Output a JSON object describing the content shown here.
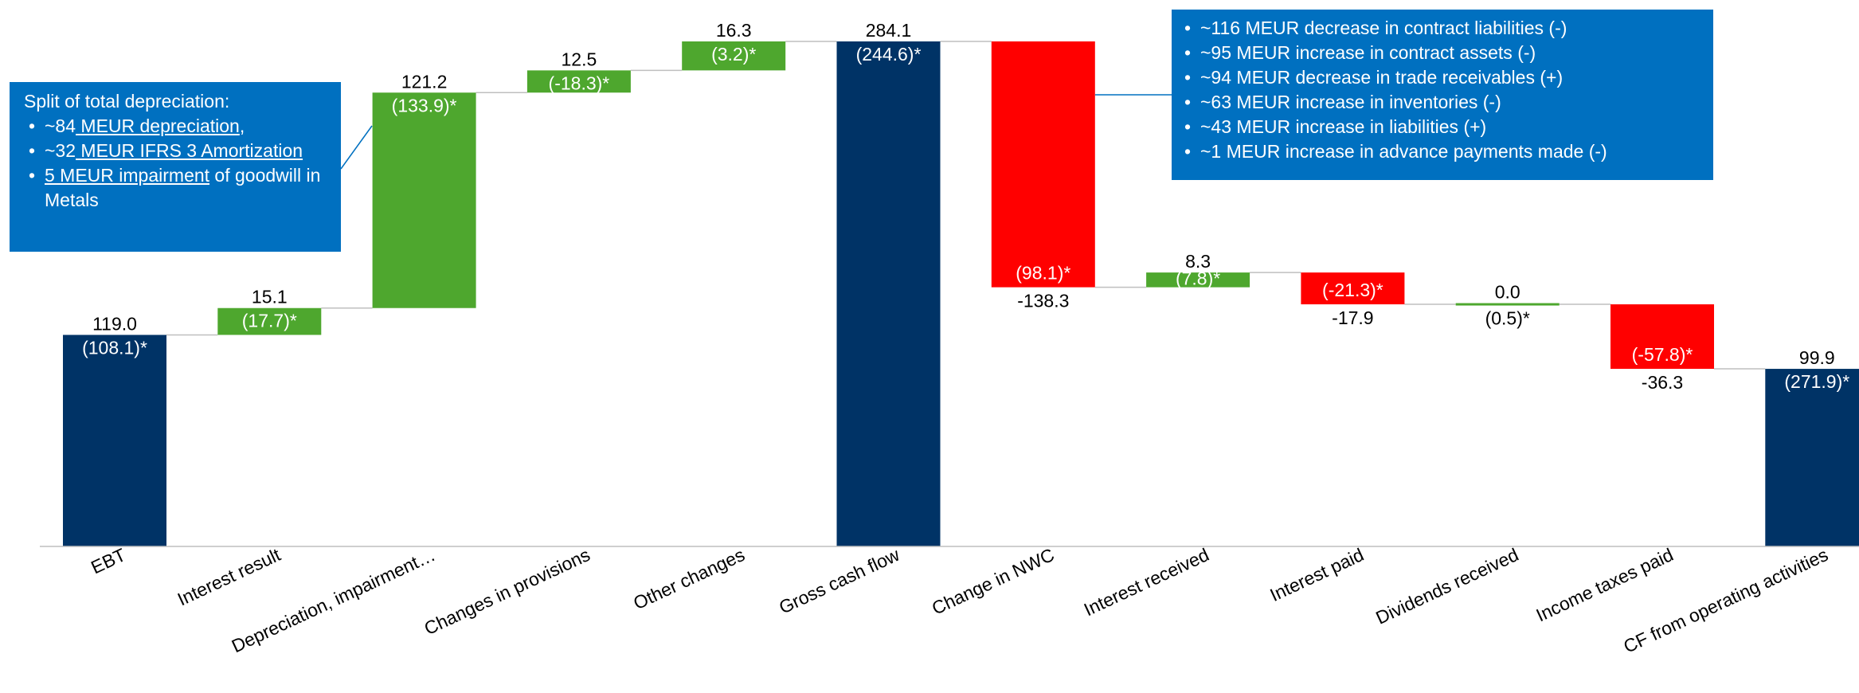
{
  "chart_data": {
    "type": "waterfall",
    "categories": [
      "EBT",
      "Interest result",
      "Depreciation, impairment…",
      "Changes in provisions",
      "Other changes",
      "Gross cash flow",
      "Change in NWC",
      "Interest received",
      "Interest paid",
      "Dividends received",
      "Income taxes paid",
      "CF from operating activities"
    ],
    "bar_kinds": [
      "total",
      "delta",
      "delta",
      "delta",
      "delta",
      "total",
      "delta",
      "delta",
      "delta",
      "delta",
      "delta",
      "total"
    ],
    "values": [
      119.0,
      15.1,
      121.2,
      12.5,
      16.3,
      284.1,
      -138.3,
      8.3,
      -17.9,
      0.0,
      -36.3,
      99.9
    ],
    "value_labels": [
      "119.0",
      "15.1",
      "121.2",
      "12.5",
      "16.3",
      "284.1",
      "-138.3",
      "8.3",
      "-17.9",
      "0.0",
      "-36.3",
      "99.9"
    ],
    "prior_labels": [
      "(108.1)*",
      "(17.7)*",
      "(133.9)*",
      "(-18.3)*",
      "(3.2)*",
      "(244.6)*",
      "(98.1)*",
      "(7.8)*",
      "(-21.3)*",
      "(0.5)*",
      "(-57.8)*",
      "(271.9)*"
    ],
    "ylim": [
      0,
      284.1
    ],
    "grid": false,
    "legend": "none",
    "colors": {
      "total": "#003366",
      "increase": "#4ea72e",
      "decrease": "#ff0000",
      "connector": "#bfbfbf",
      "axis": "#bfbfbf",
      "text": "#000000",
      "inside_text": "#ffffff"
    }
  },
  "callout_left": {
    "title": "Split of total depreciation:",
    "b1_pre": "~84",
    "b1_link": " MEUR depreciation",
    "b1_post": ",",
    "b2_pre": "~32",
    "b2_link": " MEUR IFRS 3 Amortization",
    "b3_link": "5 MEUR impairment",
    "b3_post": " of goodwill in Metals"
  },
  "callout_right": {
    "items": [
      "~116 MEUR decrease in contract liabilities (-)",
      "~95 MEUR increase in contract assets (-)",
      "~94 MEUR decrease in trade receivables (+)",
      "~63 MEUR increase in inventories (-)",
      "~43 MEUR increase in liabilities (+)",
      "~1 MEUR increase in advance payments made (-)"
    ]
  },
  "colors": {
    "callout_bg": "#0070c0"
  }
}
